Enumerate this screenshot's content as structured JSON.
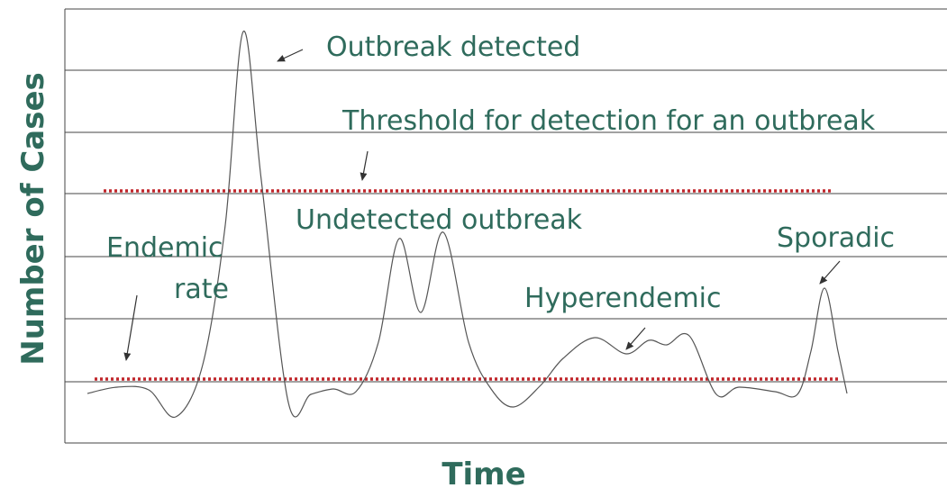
{
  "annotations": {
    "outbreak_detected": "Outbreak detected",
    "threshold": "Threshold for detection for an outbreak",
    "undetected": "Undetected outbreak",
    "endemic": "Endemic",
    "endemic_rate": "rate",
    "sporadic": "Sporadic",
    "hyperendemic": "Hyperendemic"
  },
  "axes": {
    "y_label": "Number of Cases",
    "x_label": "Time"
  }
}
